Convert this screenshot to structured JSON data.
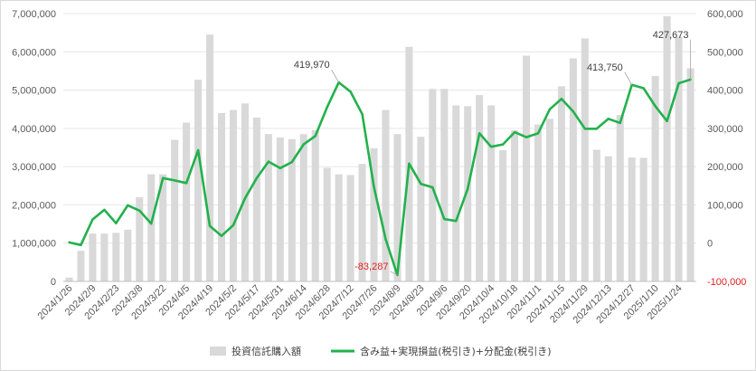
{
  "chart_data": {
    "type": "bar+line",
    "title": "",
    "xlabel": "",
    "ylabel_left": "",
    "ylabel_right": "",
    "grid": "horizontal",
    "legend_position": "bottom",
    "left_axis": {
      "ylim": [
        0,
        7000000
      ],
      "ticks": [
        "0",
        "1,000,000",
        "2,000,000",
        "3,000,000",
        "4,000,000",
        "5,000,000",
        "6,000,000",
        "7,000,000"
      ]
    },
    "right_axis": {
      "ylim": [
        -100000,
        600000
      ],
      "ticks": [
        "-100,000",
        "0",
        "100,000",
        "200,000",
        "300,000",
        "400,000",
        "500,000",
        "600,000"
      ]
    },
    "x_tick_labels": [
      "2024/1/26",
      "2024/2/9",
      "2024/2/23",
      "2024/3/8",
      "2024/3/22",
      "2024/4/5",
      "2024/4/19",
      "2024/5/2",
      "2024/5/17",
      "2024/5/31",
      "2024/6/14",
      "2024/6/28",
      "2024/7/12",
      "2024/7/26",
      "2024/8/9",
      "2024/8/23",
      "2024/9/6",
      "2024/9/20",
      "2024/10/4",
      "2024/10/18",
      "2024/11/1",
      "2024/11/15",
      "2024/11/29",
      "2024/12/13",
      "2024/12/27",
      "2025/1/10",
      "2025/1/24"
    ],
    "series": [
      {
        "name": "投資信託購入額",
        "kind": "bar",
        "axis": "left",
        "color": "#d9d9d9",
        "values": [
          100000,
          800000,
          1250000,
          1250000,
          1270000,
          1350000,
          2200000,
          2800000,
          2800000,
          3700000,
          4150000,
          5270000,
          6450000,
          4400000,
          4480000,
          4650000,
          4280000,
          3850000,
          3760000,
          3720000,
          3850000,
          3950000,
          2970000,
          2800000,
          2780000,
          3070000,
          3480000,
          4480000,
          3850000,
          6130000,
          3780000,
          5030000,
          5030000,
          4600000,
          4580000,
          4870000,
          4600000,
          3430000,
          3950000,
          5900000,
          4100000,
          4250000,
          5100000,
          5830000,
          6350000,
          3440000,
          3270000,
          4350000,
          3240000,
          3230000,
          5370000,
          6930000,
          6390000,
          5570000
        ]
      },
      {
        "name": "含み益+実現損益(税引き)+分配金(税引き)",
        "kind": "line",
        "axis": "right",
        "color": "#22b14c",
        "values": [
          2000,
          -5000,
          62000,
          87000,
          52000,
          99000,
          85000,
          51000,
          170000,
          164000,
          157000,
          243000,
          45000,
          19000,
          47000,
          117000,
          170000,
          213000,
          196000,
          212000,
          258000,
          280000,
          355000,
          419970,
          396000,
          337000,
          147000,
          10000,
          -83287,
          208000,
          155000,
          146000,
          63000,
          58000,
          142000,
          287000,
          252000,
          258000,
          290000,
          277000,
          287000,
          350000,
          377000,
          344000,
          299000,
          299000,
          325000,
          314000,
          413750,
          405000,
          358000,
          319000,
          418000,
          427673
        ]
      }
    ],
    "annotations": [
      {
        "text": "419,970",
        "x_index": 23,
        "series": 1
      },
      {
        "text": "-83,287",
        "x_index": 28,
        "series": 1,
        "color": "#e02020"
      },
      {
        "text": "413,750",
        "x_index": 48,
        "series": 1
      },
      {
        "text": "427,673",
        "x_index": 53,
        "series": 1
      }
    ]
  }
}
